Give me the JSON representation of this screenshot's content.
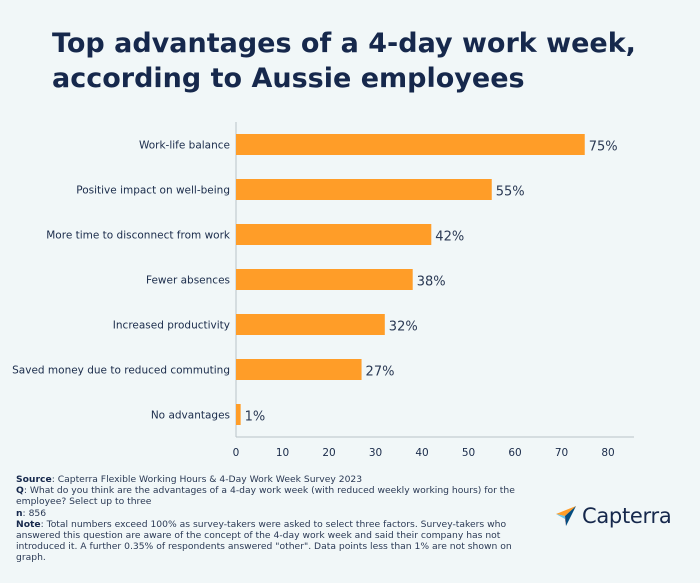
{
  "title_lines": [
    "Top advantages of a 4-day work week,",
    "according to Aussie employees"
  ],
  "chart_data": {
    "type": "bar",
    "orientation": "horizontal",
    "categories": [
      "Work-life balance",
      "Positive impact on well-being",
      "More time to disconnect from work",
      "Fewer absences",
      "Increased productivity",
      "Saved money due to reduced commuting",
      "No advantages"
    ],
    "values": [
      75,
      55,
      42,
      38,
      32,
      27,
      1
    ],
    "value_labels": [
      "75%",
      "55%",
      "42%",
      "38%",
      "32%",
      "27%",
      "1%"
    ],
    "xlim": [
      0,
      80
    ],
    "xticks": [
      "0",
      "10",
      "20",
      "30",
      "40",
      "50",
      "60",
      "70",
      "80"
    ],
    "grid": false,
    "bar_color": "#ff9d28"
  },
  "footer": {
    "source_label": "Source",
    "source_text": ": Capterra Flexible Working Hours & 4-Day Work Week Survey 2023",
    "q_label": "Q",
    "q_text": ": What do you think are the advantages of a 4-day work week (with reduced weekly working hours) for the employee? Select up to three",
    "n_label": "n",
    "n_text": ": 856",
    "note_label": "Note",
    "note_text": ": Total numbers exceed 100% as survey-takers were asked to select three factors. Survey-takers who answered this question are aware of the concept of the 4-day work week and said their company has not introduced it. A further 0.35% of respondents answered \"other\". Data points less than 1% are not shown on graph."
  },
  "logo": {
    "text": "Capterra",
    "icon": "capterra-arrow-icon"
  }
}
